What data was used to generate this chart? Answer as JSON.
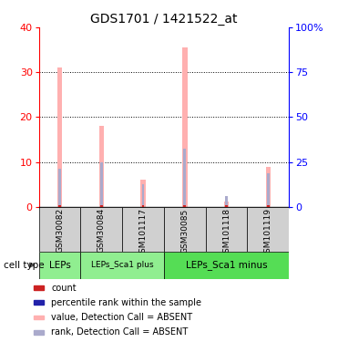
{
  "title": "GDS1701 / 1421522_at",
  "samples": [
    "GSM30082",
    "GSM30084",
    "GSM101117",
    "GSM30085",
    "GSM101118",
    "GSM101119"
  ],
  "pink_values": [
    31,
    18,
    6,
    35.5,
    1.2,
    9
  ],
  "blue_values": [
    8.5,
    10,
    5,
    13,
    2.5,
    7.5
  ],
  "red_values": [
    0.4,
    0.4,
    0.4,
    0.4,
    0.4,
    0.4
  ],
  "ylim_left": [
    0,
    40
  ],
  "ylim_right": [
    0,
    100
  ],
  "yticks_left": [
    0,
    10,
    20,
    30,
    40
  ],
  "yticks_right": [
    0,
    25,
    50,
    75,
    100
  ],
  "ytick_labels_right": [
    "0",
    "25",
    "50",
    "75",
    "100%"
  ],
  "cell_groups": [
    {
      "label": "LEPs",
      "start": 0,
      "end": 1
    },
    {
      "label": "LEPs_Sca1 plus",
      "start": 1,
      "end": 3
    },
    {
      "label": "LEPs_Sca1 minus",
      "start": 3,
      "end": 6
    }
  ],
  "pink_color": "#ffb0b0",
  "blue_color": "#aaaacc",
  "red_color": "#cc2222",
  "dark_blue_color": "#2222aa",
  "bg_color_bar": "#d0d0d0",
  "cell_color_leps": "#90ee90",
  "cell_color_minus": "#55dd55",
  "pink_bar_width": 0.12,
  "blue_bar_width": 0.06,
  "red_bar_width": 0.06
}
